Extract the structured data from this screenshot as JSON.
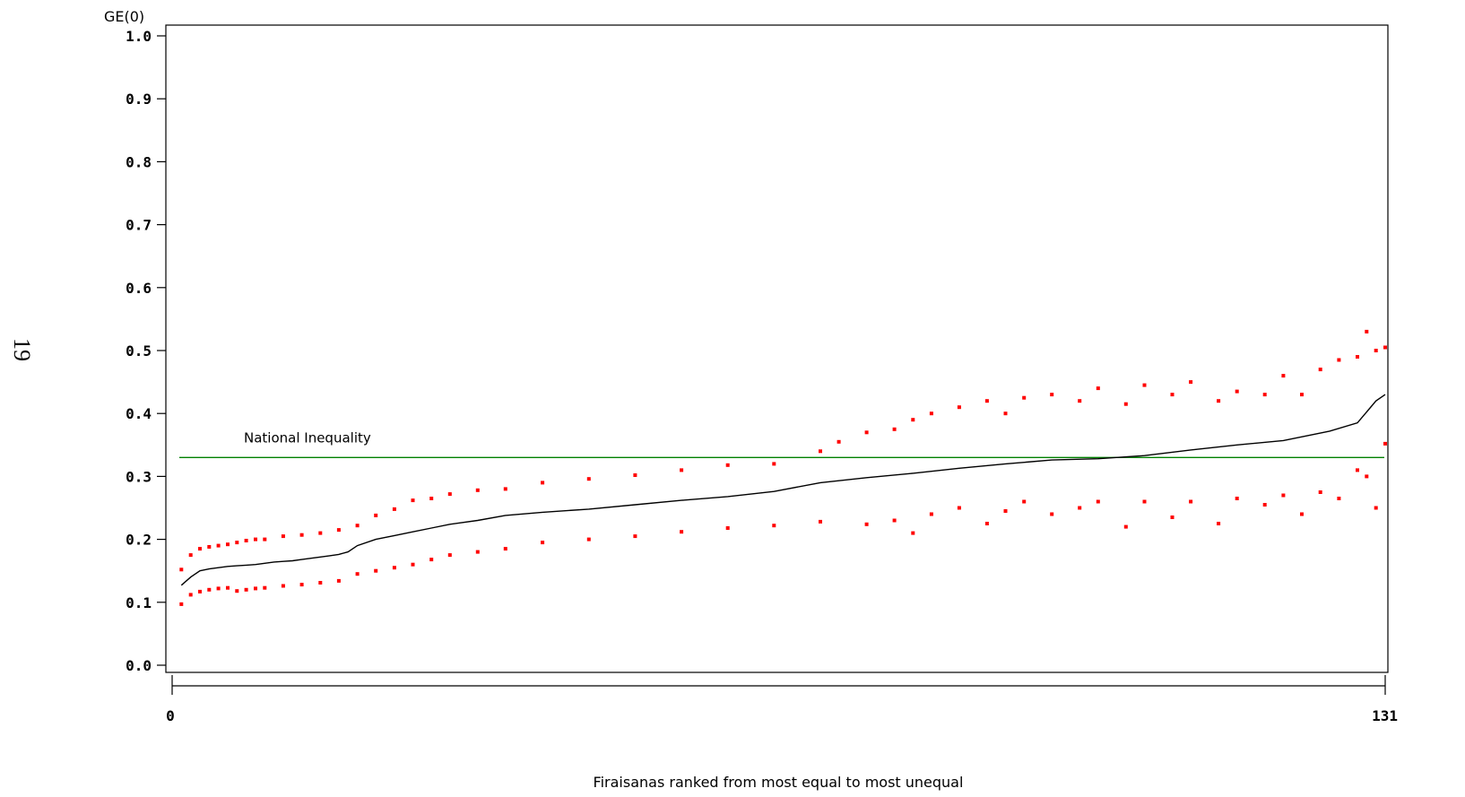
{
  "page_number": "19",
  "chart_data": {
    "type": "line",
    "ylabel": "GE(0)",
    "xlabel": "Firaisanas ranked from most equal to most unequal",
    "xlim": [
      0,
      131
    ],
    "ylim": [
      0.0,
      1.0
    ],
    "x_ticks": [
      {
        "value": 0,
        "label": "0"
      },
      {
        "value": 131,
        "label": "131"
      }
    ],
    "y_ticks": [
      {
        "value": 0.0,
        "label": "0.0"
      },
      {
        "value": 0.1,
        "label": "0.1"
      },
      {
        "value": 0.2,
        "label": "0.2"
      },
      {
        "value": 0.3,
        "label": "0.3"
      },
      {
        "value": 0.4,
        "label": "0.4"
      },
      {
        "value": 0.5,
        "label": "0.5"
      },
      {
        "value": 0.6,
        "label": "0.6"
      },
      {
        "value": 0.7,
        "label": "0.7"
      },
      {
        "value": 0.8,
        "label": "0.8"
      },
      {
        "value": 0.9,
        "label": "0.9"
      },
      {
        "value": 1.0,
        "label": "1.0"
      }
    ],
    "reference_line": {
      "value": 0.33,
      "label": "National Inequality",
      "color": "#008000"
    },
    "colors": {
      "estimate": "#000000",
      "bounds": "#ff0000",
      "reference": "#008000"
    },
    "grid": false,
    "series": [
      {
        "role": "estimate",
        "x": [
          1,
          2,
          3,
          4,
          5,
          6,
          7,
          8,
          9,
          10,
          11,
          12,
          13,
          14,
          15,
          16,
          17,
          18,
          19,
          20,
          22,
          24,
          26,
          28,
          30,
          33,
          36,
          40,
          45,
          50,
          55,
          60,
          65,
          70,
          75,
          80,
          85,
          90,
          95,
          100,
          105,
          110,
          115,
          120,
          125,
          128,
          130,
          131
        ],
        "values": [
          0.127,
          0.14,
          0.15,
          0.153,
          0.155,
          0.157,
          0.158,
          0.159,
          0.16,
          0.162,
          0.164,
          0.165,
          0.166,
          0.168,
          0.17,
          0.172,
          0.174,
          0.176,
          0.18,
          0.19,
          0.2,
          0.206,
          0.212,
          0.218,
          0.224,
          0.23,
          0.238,
          0.243,
          0.248,
          0.255,
          0.262,
          0.268,
          0.276,
          0.29,
          0.298,
          0.305,
          0.313,
          0.32,
          0.326,
          0.328,
          0.333,
          0.342,
          0.35,
          0.357,
          0.372,
          0.385,
          0.42,
          0.43
        ]
      },
      {
        "role": "upper-bound",
        "x": [
          1,
          2,
          3,
          4,
          5,
          6,
          7,
          8,
          9,
          10,
          12,
          14,
          16,
          18,
          20,
          22,
          24,
          26,
          28,
          30,
          33,
          36,
          40,
          45,
          50,
          55,
          60,
          65,
          70,
          72,
          75,
          78,
          80,
          82,
          85,
          88,
          90,
          92,
          95,
          98,
          100,
          103,
          105,
          108,
          110,
          113,
          115,
          118,
          120,
          122,
          124,
          126,
          128,
          129,
          130,
          131
        ],
        "values": [
          0.152,
          0.175,
          0.185,
          0.188,
          0.19,
          0.192,
          0.195,
          0.198,
          0.2,
          0.2,
          0.205,
          0.207,
          0.21,
          0.215,
          0.222,
          0.238,
          0.248,
          0.262,
          0.265,
          0.272,
          0.278,
          0.28,
          0.29,
          0.296,
          0.302,
          0.31,
          0.318,
          0.32,
          0.34,
          0.355,
          0.37,
          0.375,
          0.39,
          0.4,
          0.41,
          0.42,
          0.4,
          0.425,
          0.43,
          0.42,
          0.44,
          0.415,
          0.445,
          0.43,
          0.45,
          0.42,
          0.435,
          0.43,
          0.46,
          0.43,
          0.47,
          0.485,
          0.49,
          0.53,
          0.5,
          0.505
        ]
      },
      {
        "role": "lower-bound",
        "x": [
          1,
          2,
          3,
          4,
          5,
          6,
          7,
          8,
          9,
          10,
          12,
          14,
          16,
          18,
          20,
          22,
          24,
          26,
          28,
          30,
          33,
          36,
          40,
          45,
          50,
          55,
          60,
          65,
          70,
          75,
          78,
          80,
          82,
          85,
          88,
          90,
          92,
          95,
          98,
          100,
          103,
          105,
          108,
          110,
          113,
          115,
          118,
          120,
          122,
          124,
          126,
          128,
          129,
          130,
          131
        ],
        "values": [
          0.097,
          0.112,
          0.117,
          0.12,
          0.122,
          0.123,
          0.118,
          0.12,
          0.122,
          0.123,
          0.126,
          0.128,
          0.131,
          0.134,
          0.145,
          0.15,
          0.155,
          0.16,
          0.168,
          0.175,
          0.18,
          0.185,
          0.195,
          0.2,
          0.205,
          0.212,
          0.218,
          0.222,
          0.228,
          0.224,
          0.23,
          0.21,
          0.24,
          0.25,
          0.225,
          0.245,
          0.26,
          0.24,
          0.25,
          0.26,
          0.22,
          0.26,
          0.235,
          0.26,
          0.225,
          0.265,
          0.255,
          0.27,
          0.24,
          0.275,
          0.265,
          0.31,
          0.3,
          0.25,
          0.352
        ]
      }
    ]
  }
}
